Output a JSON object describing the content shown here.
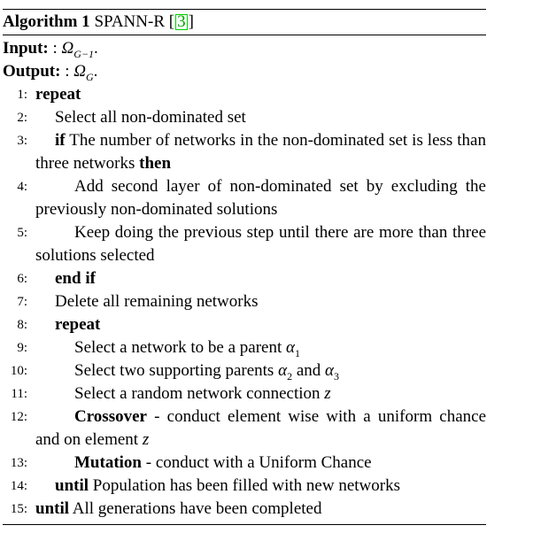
{
  "caption": {
    "label": "Algorithm 1",
    "title": "SPANN-R",
    "cite_open": "[",
    "cite_num": "3",
    "cite_close": "]"
  },
  "input": {
    "label": "Input:",
    "value": ": ΩG−1."
  },
  "output": {
    "label": "Output:",
    "value": ": ΩG."
  },
  "lines": [
    {
      "num": "1:",
      "kw": "repeat",
      "text": ""
    },
    {
      "num": "2:",
      "kw": "",
      "text": "Select all non-dominated set"
    },
    {
      "num": "3:",
      "kw": "if",
      "text": "The number of networks in the non-dominated set is less than three networks",
      "kw_end": "then"
    },
    {
      "num": "4:",
      "kw": "",
      "text": "Add second layer of non-dominated set by excluding the previously non-dominated solutions"
    },
    {
      "num": "5:",
      "kw": "",
      "text": "Keep doing the previous step until there are more than three solutions selected"
    },
    {
      "num": "6:",
      "kw": "end if",
      "text": ""
    },
    {
      "num": "7:",
      "kw": "",
      "text": "Delete all remaining networks"
    },
    {
      "num": "8:",
      "kw": "repeat",
      "text": ""
    },
    {
      "num": "9:",
      "kw": "",
      "text": "Select a network to be a parent α1"
    },
    {
      "num": "10:",
      "kw": "",
      "text": "Select two supporting parents α2 and α3"
    },
    {
      "num": "11:",
      "kw": "",
      "text": "Select a random network connection z"
    },
    {
      "num": "12:",
      "kw": "Crossover",
      "text": "- conduct element wise with a uniform chance and on element z"
    },
    {
      "num": "13:",
      "kw": "Mutation",
      "text": "- conduct with a Uniform Chance"
    },
    {
      "num": "14:",
      "kw": "until",
      "text": "Population has been filled with new networks"
    },
    {
      "num": "15:",
      "kw": "until",
      "text": "All generations have been completed"
    }
  ]
}
